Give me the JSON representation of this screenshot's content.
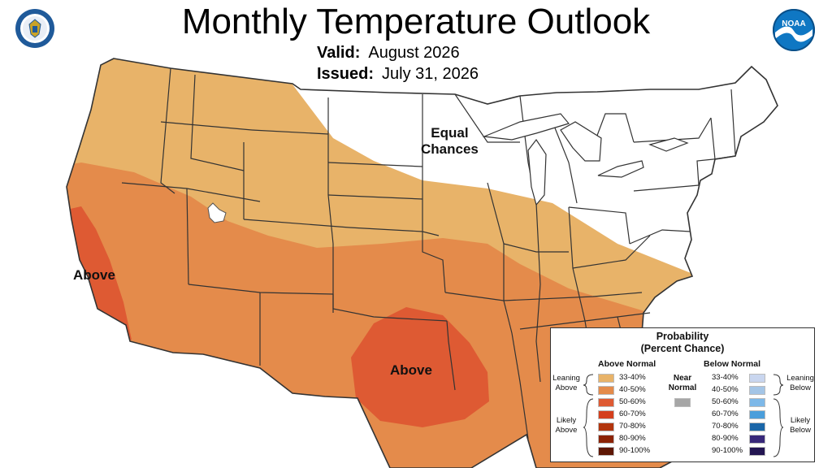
{
  "header": {
    "title": "Monthly Temperature Outlook",
    "valid_label": "Valid:",
    "valid_value": "August 2026",
    "issued_label": "Issued:",
    "issued_value": "July 31, 2026"
  },
  "logos": {
    "left": "commerce-seal-icon",
    "right": "noaa-logo-icon"
  },
  "map_labels": {
    "equal_line1": "Equal",
    "equal_line2": "Chances",
    "above_california": "Above",
    "above_texas": "Above"
  },
  "colors": {
    "background": "#ffffff",
    "state_border": "#333333",
    "above_33_40": "#E8B369",
    "above_40_50": "#E48B4B",
    "above_50_60": "#DE5A33",
    "above_60_70": "#D43F1D",
    "above_70_80": "#B2350D",
    "above_80_90": "#8C2305",
    "above_90_100": "#5E1704",
    "near_normal": "#A6A6A6",
    "below_33_40": "#C9D6EF",
    "below_40_50": "#A4C5E6",
    "below_50_60": "#7DB8E8",
    "below_60_70": "#4A9EDB",
    "below_70_80": "#1A66A8",
    "below_80_90": "#38287A",
    "below_90_100": "#231652"
  },
  "legend": {
    "title_line1": "Probability",
    "title_line2": "(Percent Chance)",
    "above_header": "Above Normal",
    "below_header": "Below Normal",
    "near_line1": "Near",
    "near_line2": "Normal",
    "leaning_above_1": "Leaning",
    "leaning_above_2": "Above",
    "likely_above_1": "Likely",
    "likely_above_2": "Above",
    "leaning_below_1": "Leaning",
    "leaning_below_2": "Below",
    "likely_below_1": "Likely",
    "likely_below_2": "Below",
    "above_ranges": [
      "33-40%",
      "40-50%",
      "50-60%",
      "60-70%",
      "70-80%",
      "80-90%",
      "90-100%"
    ],
    "below_ranges": [
      "33-40%",
      "40-50%",
      "50-60%",
      "60-70%",
      "70-80%",
      "80-90%",
      "90-100%"
    ]
  }
}
